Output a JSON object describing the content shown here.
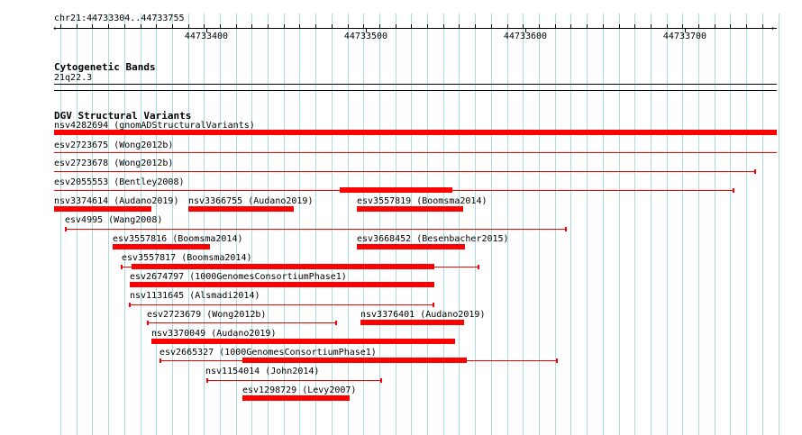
{
  "ruler": {
    "location": "chr21:44733304..44733755",
    "ticks": [
      "44733400",
      "44733500",
      "44733600",
      "44733700"
    ]
  },
  "cytoband": {
    "title": "Cytogenetic Bands",
    "band": "21q22.3"
  },
  "dgv": {
    "title": "DGV Structural Variants",
    "features": [
      {
        "label": "nsv4282694 (gnomADStructuralVariants)"
      },
      {
        "label": "esv2723675 (Wong2012b)"
      },
      {
        "label": "esv2723678 (Wong2012b)"
      },
      {
        "label": "esv2055553 (Bentley2008)"
      },
      {
        "label": "nsv3374614 (Audano2019)"
      },
      {
        "label": "nsv3366755 (Audano2019)"
      },
      {
        "label": "esv3557819 (Boomsma2014)"
      },
      {
        "label": "esv4995 (Wang2008)"
      },
      {
        "label": "esv3557816 (Boomsma2014)"
      },
      {
        "label": "esv3668452 (Besenbacher2015)"
      },
      {
        "label": "esv3557817 (Boomsma2014)"
      },
      {
        "label": "esv2674797 (1000GenomesConsortiumPhase1)"
      },
      {
        "label": "nsv1131645 (Alsmadi2014)"
      },
      {
        "label": "esv2723679 (Wong2012b)"
      },
      {
        "label": "nsv3376401 (Audano2019)"
      },
      {
        "label": "nsv3370049 (Audano2019)"
      },
      {
        "label": "esv2665327 (1000GenomesConsortiumPhase1)"
      },
      {
        "label": "nsv1154014 (John2014)"
      },
      {
        "label": "esv1298729 (Levy2007)"
      }
    ]
  },
  "colors": {
    "feature": "#ff0000",
    "grid": "#a8dde8"
  }
}
